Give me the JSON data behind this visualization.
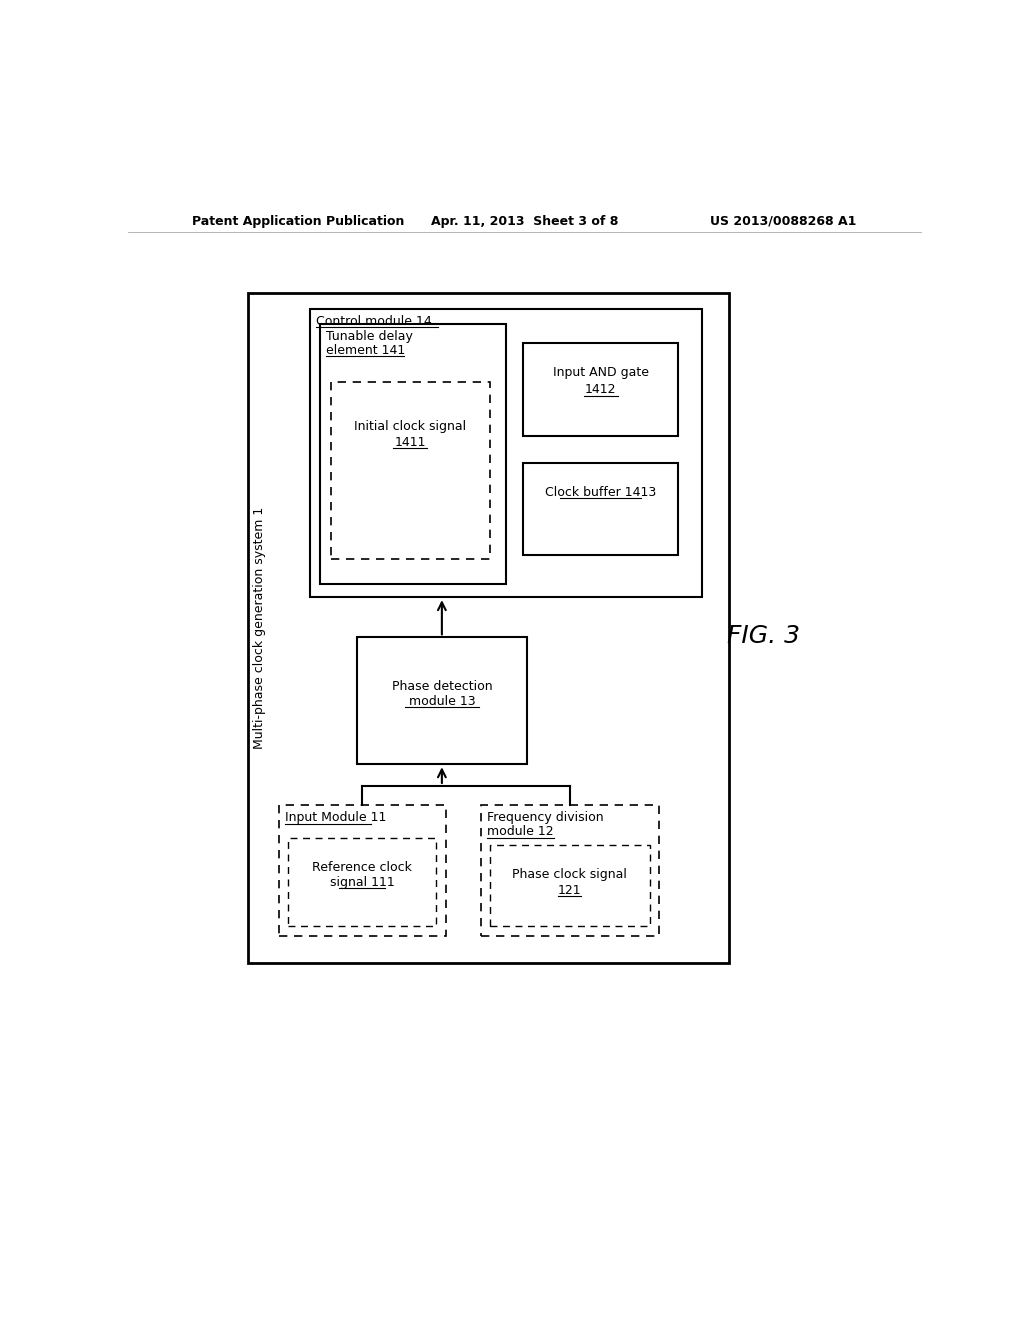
{
  "background_color": "#ffffff",
  "header_left": "Patent Application Publication",
  "header_center": "Apr. 11, 2013  Sheet 3 of 8",
  "header_right": "US 2013/0088268 A1",
  "figure_label": "FIG. 3",
  "outer_box_label": "Multi-phase clock generation system 1"
}
